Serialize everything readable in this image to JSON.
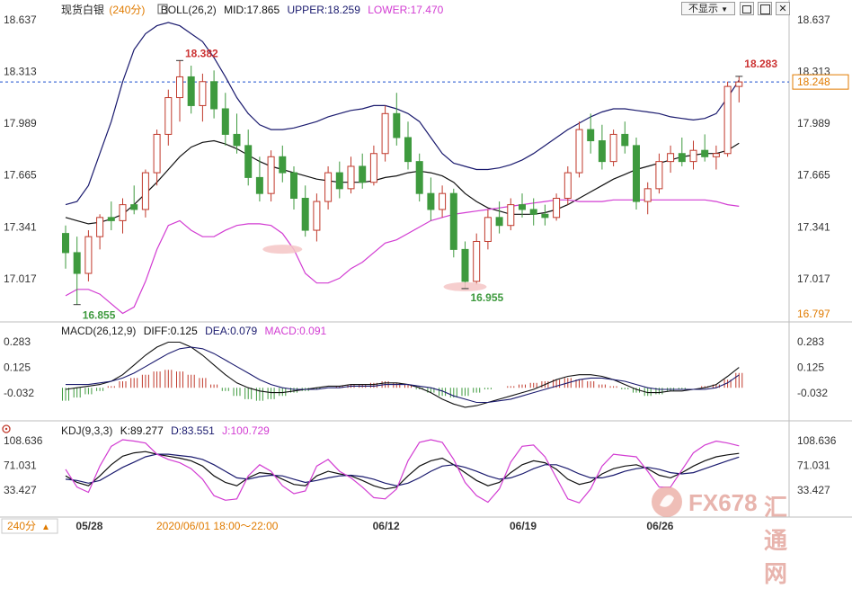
{
  "main_panel": {
    "symbol": "现货白银",
    "period": "240分",
    "indicator": "BOLL(26,2)",
    "mid_label": "MID:17.865",
    "upper_label": "UPPER:18.259",
    "lower_label": "LOWER:17.470",
    "y_ticks": [
      "18.637",
      "18.313",
      "17.989",
      "17.665",
      "17.341",
      "17.017",
      "16.797"
    ],
    "current_price": "18.248",
    "annotations": [
      "18.382",
      "16.855",
      "16.955",
      "18.283"
    ]
  },
  "macd_panel": {
    "title": "MACD(26,12,9)",
    "diff_label": "DIFF:0.125",
    "dea_label": "DEA:0.079",
    "macd_label": "MACD:0.091",
    "y_ticks": [
      "0.283",
      "0.125",
      "-0.032"
    ]
  },
  "kdj_panel": {
    "title": "KDJ(9,3,3)",
    "k_label": "K:89.277",
    "d_label": "D:83.551",
    "j_label": "J:100.729",
    "y_ticks": [
      "108.636",
      "71.031",
      "33.427"
    ]
  },
  "x_axis": {
    "period_button": "240分",
    "crosshair_label": "2020/06/01 18:00～22:00",
    "dates": [
      "05/28",
      "06/12",
      "06/19",
      "06/26"
    ]
  },
  "toolbar": {
    "hide_label": "不显示",
    "dropdown_icon": "dropdown-arrow-icon",
    "buttons": [
      "restore-icon",
      "maximize-icon",
      "close-icon"
    ]
  },
  "watermark": {
    "text_fx": "FX678",
    "text_cn": "汇通网",
    "icon": "fx678-logo-icon"
  },
  "colors": {
    "up": "#c0392b",
    "down": "#3e9a3e",
    "mid": "#111111",
    "upper": "#1a1a6e",
    "lower": "#d23cd2",
    "crosshair": "#1a4fcf",
    "title_pink": "#e23ce2",
    "axis_red": "#cc3333",
    "accent_orange": "#e07b00"
  },
  "chart_data": [
    {
      "type": "candlestick",
      "title": "现货白银 240分",
      "ylim": [
        16.797,
        18.637
      ],
      "y_ticks": [
        18.637,
        18.313,
        17.989,
        17.665,
        17.341,
        17.017
      ],
      "x_ticks": [
        "05/28",
        "06/12",
        "06/19",
        "06/26"
      ],
      "ohlc": [
        [
          17.3,
          17.35,
          17.08,
          17.18
        ],
        [
          17.18,
          17.28,
          16.855,
          17.05
        ],
        [
          17.05,
          17.32,
          17.0,
          17.28
        ],
        [
          17.28,
          17.42,
          17.2,
          17.4
        ],
        [
          17.4,
          17.5,
          17.32,
          17.38
        ],
        [
          17.38,
          17.52,
          17.3,
          17.48
        ],
        [
          17.48,
          17.6,
          17.42,
          17.45
        ],
        [
          17.45,
          17.7,
          17.4,
          17.68
        ],
        [
          17.68,
          17.95,
          17.6,
          17.92
        ],
        [
          17.92,
          18.2,
          17.85,
          18.15
        ],
        [
          18.15,
          18.382,
          18.0,
          18.28
        ],
        [
          18.28,
          18.35,
          18.05,
          18.1
        ],
        [
          18.1,
          18.3,
          18.0,
          18.25
        ],
        [
          18.25,
          18.32,
          18.02,
          18.08
        ],
        [
          18.08,
          18.18,
          17.85,
          17.92
        ],
        [
          17.92,
          18.05,
          17.8,
          17.85
        ],
        [
          17.85,
          17.95,
          17.6,
          17.65
        ],
        [
          17.65,
          17.78,
          17.5,
          17.55
        ],
        [
          17.55,
          17.82,
          17.5,
          17.78
        ],
        [
          17.78,
          17.85,
          17.62,
          17.68
        ],
        [
          17.68,
          17.72,
          17.45,
          17.52
        ],
        [
          17.52,
          17.6,
          17.28,
          17.32
        ],
        [
          17.32,
          17.55,
          17.25,
          17.5
        ],
        [
          17.5,
          17.72,
          17.45,
          17.68
        ],
        [
          17.68,
          17.75,
          17.52,
          17.58
        ],
        [
          17.58,
          17.78,
          17.55,
          17.72
        ],
        [
          17.72,
          17.8,
          17.58,
          17.62
        ],
        [
          17.62,
          17.85,
          17.6,
          17.8
        ],
        [
          17.8,
          18.1,
          17.75,
          18.05
        ],
        [
          18.05,
          18.18,
          17.85,
          17.9
        ],
        [
          17.9,
          18.0,
          17.7,
          17.75
        ],
        [
          17.75,
          17.8,
          17.5,
          17.55
        ],
        [
          17.55,
          17.65,
          17.38,
          17.45
        ],
        [
          17.45,
          17.6,
          17.4,
          17.55
        ],
        [
          17.55,
          17.58,
          17.15,
          17.2
        ],
        [
          17.2,
          17.25,
          16.955,
          17.0
        ],
        [
          17.0,
          17.3,
          16.98,
          17.25
        ],
        [
          17.25,
          17.45,
          17.2,
          17.4
        ],
        [
          17.4,
          17.5,
          17.3,
          17.35
        ],
        [
          17.35,
          17.52,
          17.32,
          17.48
        ],
        [
          17.48,
          17.55,
          17.4,
          17.45
        ],
        [
          17.45,
          17.52,
          17.35,
          17.42
        ],
        [
          17.42,
          17.48,
          17.35,
          17.4
        ],
        [
          17.4,
          17.55,
          17.38,
          17.52
        ],
        [
          17.52,
          17.72,
          17.48,
          17.68
        ],
        [
          17.68,
          18.0,
          17.65,
          17.95
        ],
        [
          17.95,
          18.05,
          17.8,
          17.88
        ],
        [
          17.88,
          17.98,
          17.7,
          17.75
        ],
        [
          17.75,
          17.95,
          17.72,
          17.92
        ],
        [
          17.92,
          18.0,
          17.8,
          17.85
        ],
        [
          17.85,
          17.9,
          17.45,
          17.5
        ],
        [
          17.5,
          17.62,
          17.42,
          17.58
        ],
        [
          17.58,
          17.8,
          17.55,
          17.75
        ],
        [
          17.75,
          17.85,
          17.68,
          17.8
        ],
        [
          17.8,
          17.9,
          17.72,
          17.75
        ],
        [
          17.75,
          17.88,
          17.7,
          17.82
        ],
        [
          17.82,
          17.92,
          17.75,
          17.78
        ],
        [
          17.78,
          17.85,
          17.7,
          17.8
        ],
        [
          17.8,
          18.25,
          17.78,
          18.22
        ],
        [
          18.22,
          18.283,
          18.12,
          18.248
        ]
      ],
      "series": [
        {
          "name": "MID",
          "values": [
            17.4,
            17.38,
            17.36,
            17.37,
            17.39,
            17.42,
            17.48,
            17.55,
            17.62,
            17.7,
            17.78,
            17.84,
            17.87,
            17.88,
            17.86,
            17.83,
            17.79,
            17.75,
            17.72,
            17.7,
            17.68,
            17.66,
            17.64,
            17.63,
            17.62,
            17.62,
            17.62,
            17.63,
            17.65,
            17.66,
            17.68,
            17.69,
            17.68,
            17.66,
            17.62,
            17.55,
            17.5,
            17.46,
            17.44,
            17.42,
            17.42,
            17.42,
            17.43,
            17.45,
            17.48,
            17.52,
            17.56,
            17.6,
            17.64,
            17.67,
            17.7,
            17.72,
            17.74,
            17.76,
            17.78,
            17.79,
            17.8,
            17.8,
            17.82,
            17.865
          ]
        },
        {
          "name": "UPPER",
          "values": [
            17.48,
            17.5,
            17.6,
            17.8,
            18.0,
            18.25,
            18.45,
            18.55,
            18.6,
            18.62,
            18.6,
            18.55,
            18.5,
            18.4,
            18.28,
            18.15,
            18.05,
            17.98,
            17.95,
            17.95,
            17.96,
            17.98,
            18.0,
            18.03,
            18.05,
            18.07,
            18.08,
            18.1,
            18.1,
            18.08,
            18.05,
            18.0,
            17.9,
            17.8,
            17.74,
            17.72,
            17.7,
            17.7,
            17.71,
            17.73,
            17.76,
            17.8,
            17.85,
            17.9,
            17.95,
            17.99,
            18.03,
            18.06,
            18.08,
            18.08,
            18.07,
            18.06,
            18.05,
            18.03,
            18.02,
            18.01,
            18.02,
            18.05,
            18.15,
            18.259
          ]
        },
        {
          "name": "LOWER",
          "values": [
            16.91,
            16.95,
            16.95,
            16.92,
            16.86,
            16.8,
            16.84,
            17.0,
            17.2,
            17.35,
            17.38,
            17.32,
            17.28,
            17.28,
            17.32,
            17.35,
            17.36,
            17.36,
            17.35,
            17.3,
            17.2,
            17.05,
            16.99,
            16.99,
            17.02,
            17.08,
            17.12,
            17.18,
            17.24,
            17.26,
            17.3,
            17.34,
            17.38,
            17.4,
            17.42,
            17.43,
            17.44,
            17.45,
            17.46,
            17.47,
            17.48,
            17.49,
            17.5,
            17.51,
            17.51,
            17.5,
            17.5,
            17.5,
            17.51,
            17.51,
            17.51,
            17.51,
            17.51,
            17.51,
            17.51,
            17.51,
            17.51,
            17.5,
            17.48,
            17.47
          ]
        }
      ]
    },
    {
      "type": "bar",
      "title": "MACD(26,12,9)",
      "ylim": [
        -0.19,
        0.37
      ],
      "y_ticks": [
        0.283,
        0.125,
        -0.032
      ],
      "series": [
        {
          "name": "MACD",
          "values": [
            -0.08,
            -0.06,
            -0.04,
            -0.02,
            0.01,
            0.04,
            0.06,
            0.08,
            0.1,
            0.11,
            0.1,
            0.08,
            0.06,
            0.02,
            -0.02,
            -0.05,
            -0.07,
            -0.08,
            -0.07,
            -0.05,
            -0.03,
            -0.02,
            -0.01,
            0.0,
            0.01,
            0.02,
            0.02,
            0.03,
            0.04,
            0.03,
            0.02,
            -0.01,
            -0.03,
            -0.05,
            -0.06,
            -0.05,
            -0.03,
            -0.01,
            0.0,
            0.01,
            0.02,
            0.03,
            0.04,
            0.05,
            0.06,
            0.05,
            0.04,
            0.02,
            0.01,
            -0.01,
            -0.03,
            -0.05,
            -0.04,
            -0.02,
            -0.01,
            0.0,
            0.01,
            0.02,
            0.05,
            0.091
          ]
        },
        {
          "name": "DIFF",
          "values": [
            -0.01,
            0.0,
            0.01,
            0.02,
            0.04,
            0.08,
            0.14,
            0.2,
            0.25,
            0.28,
            0.28,
            0.25,
            0.2,
            0.14,
            0.08,
            0.03,
            0.0,
            -0.02,
            -0.03,
            -0.03,
            -0.02,
            -0.01,
            0.0,
            0.01,
            0.01,
            0.02,
            0.02,
            0.02,
            0.03,
            0.03,
            0.02,
            0.0,
            -0.03,
            -0.07,
            -0.1,
            -0.12,
            -0.11,
            -0.09,
            -0.07,
            -0.05,
            -0.03,
            -0.01,
            0.02,
            0.05,
            0.07,
            0.08,
            0.08,
            0.07,
            0.05,
            0.02,
            -0.01,
            -0.03,
            -0.03,
            -0.02,
            -0.02,
            -0.01,
            0.0,
            0.02,
            0.07,
            0.125
          ]
        },
        {
          "name": "DEA",
          "values": [
            0.02,
            0.02,
            0.02,
            0.03,
            0.04,
            0.06,
            0.09,
            0.13,
            0.17,
            0.21,
            0.24,
            0.25,
            0.24,
            0.21,
            0.17,
            0.13,
            0.09,
            0.05,
            0.02,
            0.0,
            -0.01,
            -0.01,
            -0.01,
            0.0,
            0.0,
            0.01,
            0.01,
            0.01,
            0.02,
            0.02,
            0.02,
            0.01,
            0.0,
            -0.02,
            -0.05,
            -0.07,
            -0.09,
            -0.09,
            -0.08,
            -0.07,
            -0.05,
            -0.03,
            -0.01,
            0.01,
            0.03,
            0.05,
            0.06,
            0.06,
            0.05,
            0.04,
            0.02,
            0.0,
            -0.01,
            -0.01,
            -0.01,
            -0.01,
            -0.01,
            0.0,
            0.03,
            0.079
          ]
        }
      ]
    },
    {
      "type": "line",
      "title": "KDJ(9,3,3)",
      "ylim": [
        15,
        120
      ],
      "y_ticks": [
        108.636,
        71.031,
        33.427
      ],
      "series": [
        {
          "name": "K",
          "values": [
            55,
            45,
            40,
            55,
            72,
            85,
            90,
            92,
            88,
            85,
            82,
            78,
            70,
            55,
            45,
            40,
            52,
            60,
            58,
            50,
            42,
            40,
            55,
            62,
            58,
            55,
            48,
            40,
            35,
            38,
            55,
            70,
            78,
            82,
            72,
            60,
            48,
            40,
            45,
            60,
            72,
            78,
            75,
            65,
            50,
            42,
            46,
            58,
            66,
            70,
            72,
            66,
            56,
            52,
            60,
            70,
            78,
            84,
            87,
            89.277
          ]
        },
        {
          "name": "D",
          "values": [
            50,
            48,
            44,
            48,
            58,
            68,
            76,
            84,
            88,
            88,
            86,
            84,
            80,
            72,
            62,
            52,
            50,
            54,
            56,
            55,
            50,
            45,
            48,
            52,
            55,
            56,
            54,
            50,
            44,
            40,
            44,
            52,
            62,
            70,
            72,
            68,
            62,
            55,
            50,
            52,
            58,
            66,
            72,
            72,
            66,
            58,
            52,
            52,
            56,
            62,
            66,
            68,
            65,
            60,
            58,
            60,
            66,
            72,
            78,
            83.551
          ]
        },
        {
          "name": "J",
          "values": [
            65,
            38,
            30,
            70,
            100,
            110,
            108,
            105,
            88,
            80,
            75,
            66,
            50,
            25,
            18,
            20,
            55,
            72,
            62,
            40,
            28,
            32,
            70,
            80,
            62,
            52,
            38,
            22,
            20,
            35,
            78,
            106,
            110,
            106,
            80,
            45,
            25,
            15,
            35,
            76,
            100,
            102,
            84,
            52,
            20,
            14,
            35,
            70,
            88,
            86,
            84,
            62,
            38,
            38,
            64,
            90,
            102,
            108,
            105,
            100.729
          ]
        }
      ]
    }
  ]
}
